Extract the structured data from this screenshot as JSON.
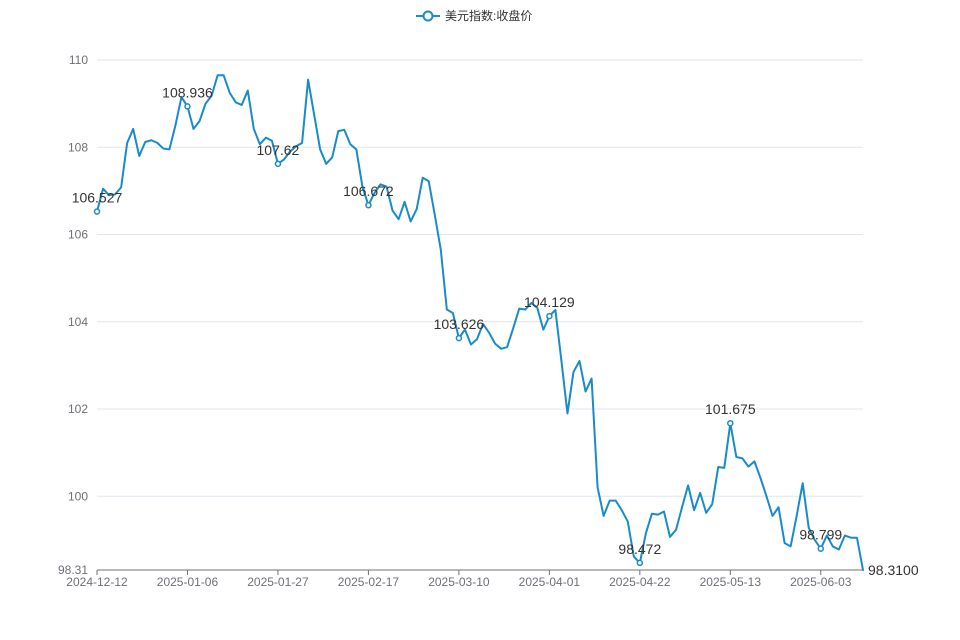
{
  "chart_data": {
    "type": "line",
    "series": [
      {
        "name": "美元指数:收盘价",
        "values": [
          106.527,
          107.05,
          106.9,
          106.92,
          107.08,
          108.1,
          108.42,
          107.8,
          108.12,
          108.16,
          108.1,
          107.97,
          107.95,
          108.5,
          109.15,
          108.936,
          108.42,
          108.6,
          109.0,
          109.18,
          109.65,
          109.65,
          109.25,
          109.03,
          108.97,
          109.3,
          108.42,
          108.07,
          108.22,
          108.15,
          107.62,
          107.72,
          107.9,
          108.02,
          108.1,
          109.55,
          108.75,
          107.95,
          107.62,
          107.77,
          108.37,
          108.4,
          108.07,
          107.95,
          107.1,
          106.672,
          106.95,
          107.15,
          107.1,
          106.55,
          106.35,
          106.75,
          106.3,
          106.58,
          107.3,
          107.22,
          106.45,
          105.65,
          104.28,
          104.2,
          103.626,
          103.82,
          103.48,
          103.6,
          103.95,
          103.75,
          103.5,
          103.38,
          103.42,
          103.85,
          104.3,
          104.28,
          104.43,
          104.32,
          103.82,
          104.129,
          104.27,
          103.1,
          101.9,
          102.85,
          103.1,
          102.4,
          102.7,
          100.2,
          99.55,
          99.9,
          99.9,
          99.68,
          99.42,
          98.62,
          98.472,
          99.15,
          99.6,
          99.58,
          99.65,
          99.07,
          99.23,
          99.75,
          100.25,
          99.68,
          100.08,
          99.62,
          99.82,
          100.67,
          100.65,
          101.675,
          100.9,
          100.87,
          100.68,
          100.8,
          100.42,
          100.0,
          99.55,
          99.75,
          98.93,
          98.85,
          99.55,
          100.3,
          99.28,
          99.0,
          98.799,
          99.1,
          98.85,
          98.78,
          99.1,
          99.05,
          99.05,
          98.31
        ]
      }
    ],
    "x_ticks": [
      "2024-12-12",
      "2025-01-06",
      "2025-01-27",
      "2025-02-17",
      "2025-03-10",
      "2025-04-01",
      "2025-04-22",
      "2025-05-13",
      "2025-06-03"
    ],
    "y_ticks": [
      98.31,
      100,
      102,
      104,
      106,
      108,
      110
    ],
    "ylim": [
      98.31,
      110
    ],
    "end_label": "98.3100",
    "legend_position": "top-center",
    "y_grid": true
  },
  "colors": {
    "series_line": "#1a8bca",
    "marker_fill": "#ffffff",
    "grid": "#e0e6f1",
    "axis": "#6e7079"
  }
}
